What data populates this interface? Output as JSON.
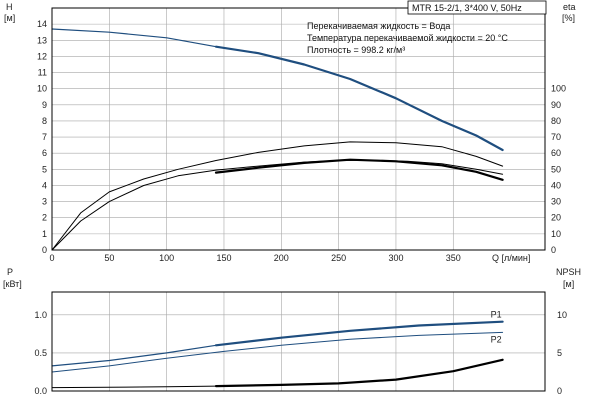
{
  "title": "MTR 15-2/1, 3*400 V, 50Hz",
  "info": [
    "Перекачиваемая жидкость = Вода",
    "Температура перекачиваемой жидкости = 20 °C",
    "Плотность = 998.2 кг/м³"
  ],
  "colors": {
    "accent": "#1f4e7f",
    "black": "#000000",
    "grid": "#a8a8a8"
  },
  "chart_data": [
    {
      "type": "line",
      "name": "top",
      "xlabel": "Q [л/мин]",
      "xlim": [
        0,
        430
      ],
      "x_ticks": [
        "0",
        "50",
        "100",
        "150",
        "200",
        "250",
        "300",
        "350"
      ],
      "ylim_left": [
        0,
        15
      ],
      "ylabel_left": "H [м]",
      "y_ticks_left": [
        "0",
        "1",
        "2",
        "3",
        "4",
        "5",
        "6",
        "7",
        "8",
        "9",
        "10",
        "11",
        "12",
        "13",
        "14"
      ],
      "ylim_right": [
        0,
        150
      ],
      "ylabel_right": "eta [%]",
      "y_ticks_right": [
        "0",
        "10",
        "20",
        "30",
        "40",
        "50",
        "60",
        "70",
        "80",
        "90",
        "100"
      ],
      "grid": true,
      "series": [
        {
          "axis": "left",
          "color": "#1f4e7f",
          "width": 1.2,
          "points": [
            [
              0,
              13.7
            ],
            [
              50,
              13.5
            ],
            [
              100,
              13.15
            ],
            [
              143,
              12.6
            ]
          ]
        },
        {
          "axis": "left",
          "color": "#1f4e7f",
          "width": 2.2,
          "points": [
            [
              143,
              12.6
            ],
            [
              180,
              12.2
            ],
            [
              220,
              11.5
            ],
            [
              260,
              10.6
            ],
            [
              300,
              9.4
            ],
            [
              340,
              8.0
            ],
            [
              370,
              7.1
            ],
            [
              393,
              6.2
            ]
          ]
        },
        {
          "axis": "right",
          "color": "#000000",
          "width": 1.0,
          "points": [
            [
              0,
              0
            ],
            [
              25,
              18
            ],
            [
              50,
              30
            ],
            [
              80,
              40
            ],
            [
              110,
              46
            ],
            [
              143,
              49.5
            ],
            [
              180,
              52
            ],
            [
              220,
              54.5
            ],
            [
              250,
              55.5
            ],
            [
              280,
              55.6
            ],
            [
              310,
              55
            ],
            [
              340,
              53.5
            ],
            [
              370,
              50
            ],
            [
              393,
              47
            ]
          ]
        },
        {
          "axis": "right",
          "color": "#000000",
          "width": 1.0,
          "points": [
            [
              0,
              0
            ],
            [
              25,
              23
            ],
            [
              50,
              36
            ],
            [
              80,
              44
            ],
            [
              110,
              50
            ],
            [
              143,
              55.5
            ],
            [
              180,
              60.5
            ],
            [
              220,
              64.5
            ],
            [
              260,
              67
            ],
            [
              300,
              66.5
            ],
            [
              340,
              64
            ],
            [
              370,
              58
            ],
            [
              393,
              52
            ]
          ]
        },
        {
          "axis": "left",
          "color": "#000000",
          "width": 2.2,
          "points": [
            [
              143,
              4.8
            ],
            [
              180,
              5.1
            ],
            [
              220,
              5.4
            ],
            [
              260,
              5.6
            ],
            [
              300,
              5.5
            ],
            [
              340,
              5.25
            ],
            [
              370,
              4.85
            ],
            [
              393,
              4.35
            ]
          ]
        }
      ]
    },
    {
      "type": "line",
      "name": "bottom",
      "xlim": [
        0,
        430
      ],
      "ylim_left": [
        0,
        1.3
      ],
      "ylabel_left": "P [кВт]",
      "y_ticks_left": [
        "0.0",
        "0.5",
        "1.0"
      ],
      "y_tick_values_left": [
        0,
        0.5,
        1.0
      ],
      "ylim_right": [
        0,
        13
      ],
      "ylabel_right": "NPSH [м]",
      "y_ticks_right": [
        "0",
        "5",
        "10"
      ],
      "y_tick_values_right": [
        0,
        5,
        10
      ],
      "grid": true,
      "series": [
        {
          "name": "P1",
          "axis": "left",
          "color": "#1f4e7f",
          "width": 1.2,
          "points": [
            [
              0,
              0.33
            ],
            [
              50,
              0.4
            ],
            [
              100,
              0.5
            ],
            [
              143,
              0.6
            ]
          ]
        },
        {
          "name": "P1",
          "axis": "left",
          "color": "#1f4e7f",
          "width": 2.2,
          "points": [
            [
              143,
              0.6
            ],
            [
              200,
              0.7
            ],
            [
              260,
              0.79
            ],
            [
              320,
              0.86
            ],
            [
              393,
              0.91
            ]
          ],
          "label": "P1"
        },
        {
          "name": "P2",
          "axis": "left",
          "color": "#1f4e7f",
          "width": 1.0,
          "points": [
            [
              0,
              0.25
            ],
            [
              50,
              0.33
            ],
            [
              100,
              0.43
            ],
            [
              150,
              0.52
            ],
            [
              200,
              0.6
            ],
            [
              260,
              0.68
            ],
            [
              320,
              0.73
            ],
            [
              393,
              0.77
            ]
          ],
          "label": "P2"
        },
        {
          "axis": "right",
          "color": "#000000",
          "width": 1.0,
          "points": [
            [
              0,
              0.45
            ],
            [
              50,
              0.5
            ],
            [
              100,
              0.55
            ],
            [
              143,
              0.65
            ]
          ]
        },
        {
          "axis": "right",
          "color": "#000000",
          "width": 2.2,
          "points": [
            [
              143,
              0.65
            ],
            [
              200,
              0.8
            ],
            [
              250,
              1.0
            ],
            [
              300,
              1.5
            ],
            [
              350,
              2.6
            ],
            [
              393,
              4.1
            ]
          ]
        }
      ]
    }
  ]
}
